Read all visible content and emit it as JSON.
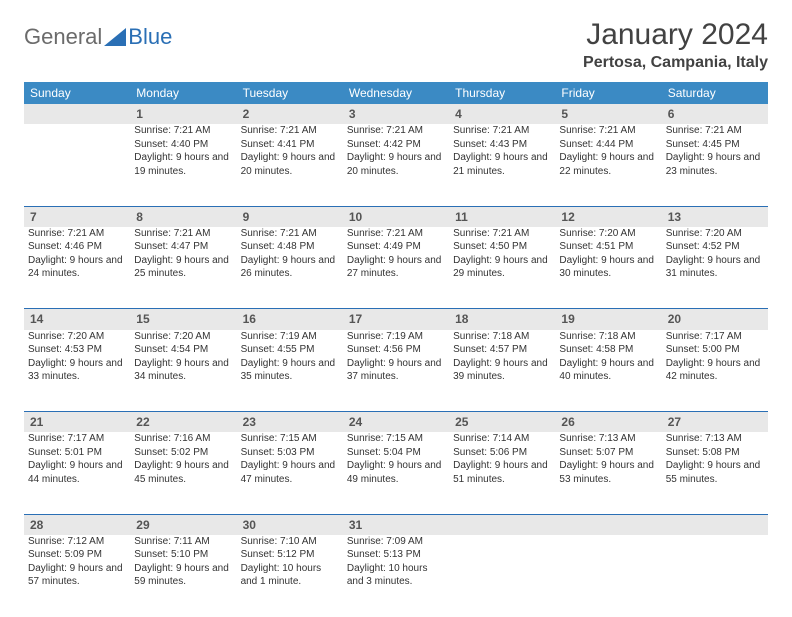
{
  "logo": {
    "general": "General",
    "blue": "Blue"
  },
  "title": "January 2024",
  "location": "Pertosa, Campania, Italy",
  "day_headers": [
    "Sunday",
    "Monday",
    "Tuesday",
    "Wednesday",
    "Thursday",
    "Friday",
    "Saturday"
  ],
  "colors": {
    "header_bg": "#3b8ac4",
    "header_text": "#ffffff",
    "daynum_bg": "#e8e8e8",
    "border": "#2a6fb5",
    "logo_gray": "#6b6b6b",
    "logo_blue": "#2a6fb5",
    "text": "#333333",
    "title_color": "#424242"
  },
  "typography": {
    "title_fontsize": 30,
    "location_fontsize": 16,
    "header_fontsize": 12,
    "daynum_fontsize": 12,
    "cell_fontsize": 10
  },
  "weeks": [
    [
      null,
      {
        "n": "1",
        "sr": "7:21 AM",
        "ss": "4:40 PM",
        "d": "9 hours and 19 minutes."
      },
      {
        "n": "2",
        "sr": "7:21 AM",
        "ss": "4:41 PM",
        "d": "9 hours and 20 minutes."
      },
      {
        "n": "3",
        "sr": "7:21 AM",
        "ss": "4:42 PM",
        "d": "9 hours and 20 minutes."
      },
      {
        "n": "4",
        "sr": "7:21 AM",
        "ss": "4:43 PM",
        "d": "9 hours and 21 minutes."
      },
      {
        "n": "5",
        "sr": "7:21 AM",
        "ss": "4:44 PM",
        "d": "9 hours and 22 minutes."
      },
      {
        "n": "6",
        "sr": "7:21 AM",
        "ss": "4:45 PM",
        "d": "9 hours and 23 minutes."
      }
    ],
    [
      {
        "n": "7",
        "sr": "7:21 AM",
        "ss": "4:46 PM",
        "d": "9 hours and 24 minutes."
      },
      {
        "n": "8",
        "sr": "7:21 AM",
        "ss": "4:47 PM",
        "d": "9 hours and 25 minutes."
      },
      {
        "n": "9",
        "sr": "7:21 AM",
        "ss": "4:48 PM",
        "d": "9 hours and 26 minutes."
      },
      {
        "n": "10",
        "sr": "7:21 AM",
        "ss": "4:49 PM",
        "d": "9 hours and 27 minutes."
      },
      {
        "n": "11",
        "sr": "7:21 AM",
        "ss": "4:50 PM",
        "d": "9 hours and 29 minutes."
      },
      {
        "n": "12",
        "sr": "7:20 AM",
        "ss": "4:51 PM",
        "d": "9 hours and 30 minutes."
      },
      {
        "n": "13",
        "sr": "7:20 AM",
        "ss": "4:52 PM",
        "d": "9 hours and 31 minutes."
      }
    ],
    [
      {
        "n": "14",
        "sr": "7:20 AM",
        "ss": "4:53 PM",
        "d": "9 hours and 33 minutes."
      },
      {
        "n": "15",
        "sr": "7:20 AM",
        "ss": "4:54 PM",
        "d": "9 hours and 34 minutes."
      },
      {
        "n": "16",
        "sr": "7:19 AM",
        "ss": "4:55 PM",
        "d": "9 hours and 35 minutes."
      },
      {
        "n": "17",
        "sr": "7:19 AM",
        "ss": "4:56 PM",
        "d": "9 hours and 37 minutes."
      },
      {
        "n": "18",
        "sr": "7:18 AM",
        "ss": "4:57 PM",
        "d": "9 hours and 39 minutes."
      },
      {
        "n": "19",
        "sr": "7:18 AM",
        "ss": "4:58 PM",
        "d": "9 hours and 40 minutes."
      },
      {
        "n": "20",
        "sr": "7:17 AM",
        "ss": "5:00 PM",
        "d": "9 hours and 42 minutes."
      }
    ],
    [
      {
        "n": "21",
        "sr": "7:17 AM",
        "ss": "5:01 PM",
        "d": "9 hours and 44 minutes."
      },
      {
        "n": "22",
        "sr": "7:16 AM",
        "ss": "5:02 PM",
        "d": "9 hours and 45 minutes."
      },
      {
        "n": "23",
        "sr": "7:15 AM",
        "ss": "5:03 PM",
        "d": "9 hours and 47 minutes."
      },
      {
        "n": "24",
        "sr": "7:15 AM",
        "ss": "5:04 PM",
        "d": "9 hours and 49 minutes."
      },
      {
        "n": "25",
        "sr": "7:14 AM",
        "ss": "5:06 PM",
        "d": "9 hours and 51 minutes."
      },
      {
        "n": "26",
        "sr": "7:13 AM",
        "ss": "5:07 PM",
        "d": "9 hours and 53 minutes."
      },
      {
        "n": "27",
        "sr": "7:13 AM",
        "ss": "5:08 PM",
        "d": "9 hours and 55 minutes."
      }
    ],
    [
      {
        "n": "28",
        "sr": "7:12 AM",
        "ss": "5:09 PM",
        "d": "9 hours and 57 minutes."
      },
      {
        "n": "29",
        "sr": "7:11 AM",
        "ss": "5:10 PM",
        "d": "9 hours and 59 minutes."
      },
      {
        "n": "30",
        "sr": "7:10 AM",
        "ss": "5:12 PM",
        "d": "10 hours and 1 minute."
      },
      {
        "n": "31",
        "sr": "7:09 AM",
        "ss": "5:13 PM",
        "d": "10 hours and 3 minutes."
      },
      null,
      null,
      null
    ]
  ]
}
